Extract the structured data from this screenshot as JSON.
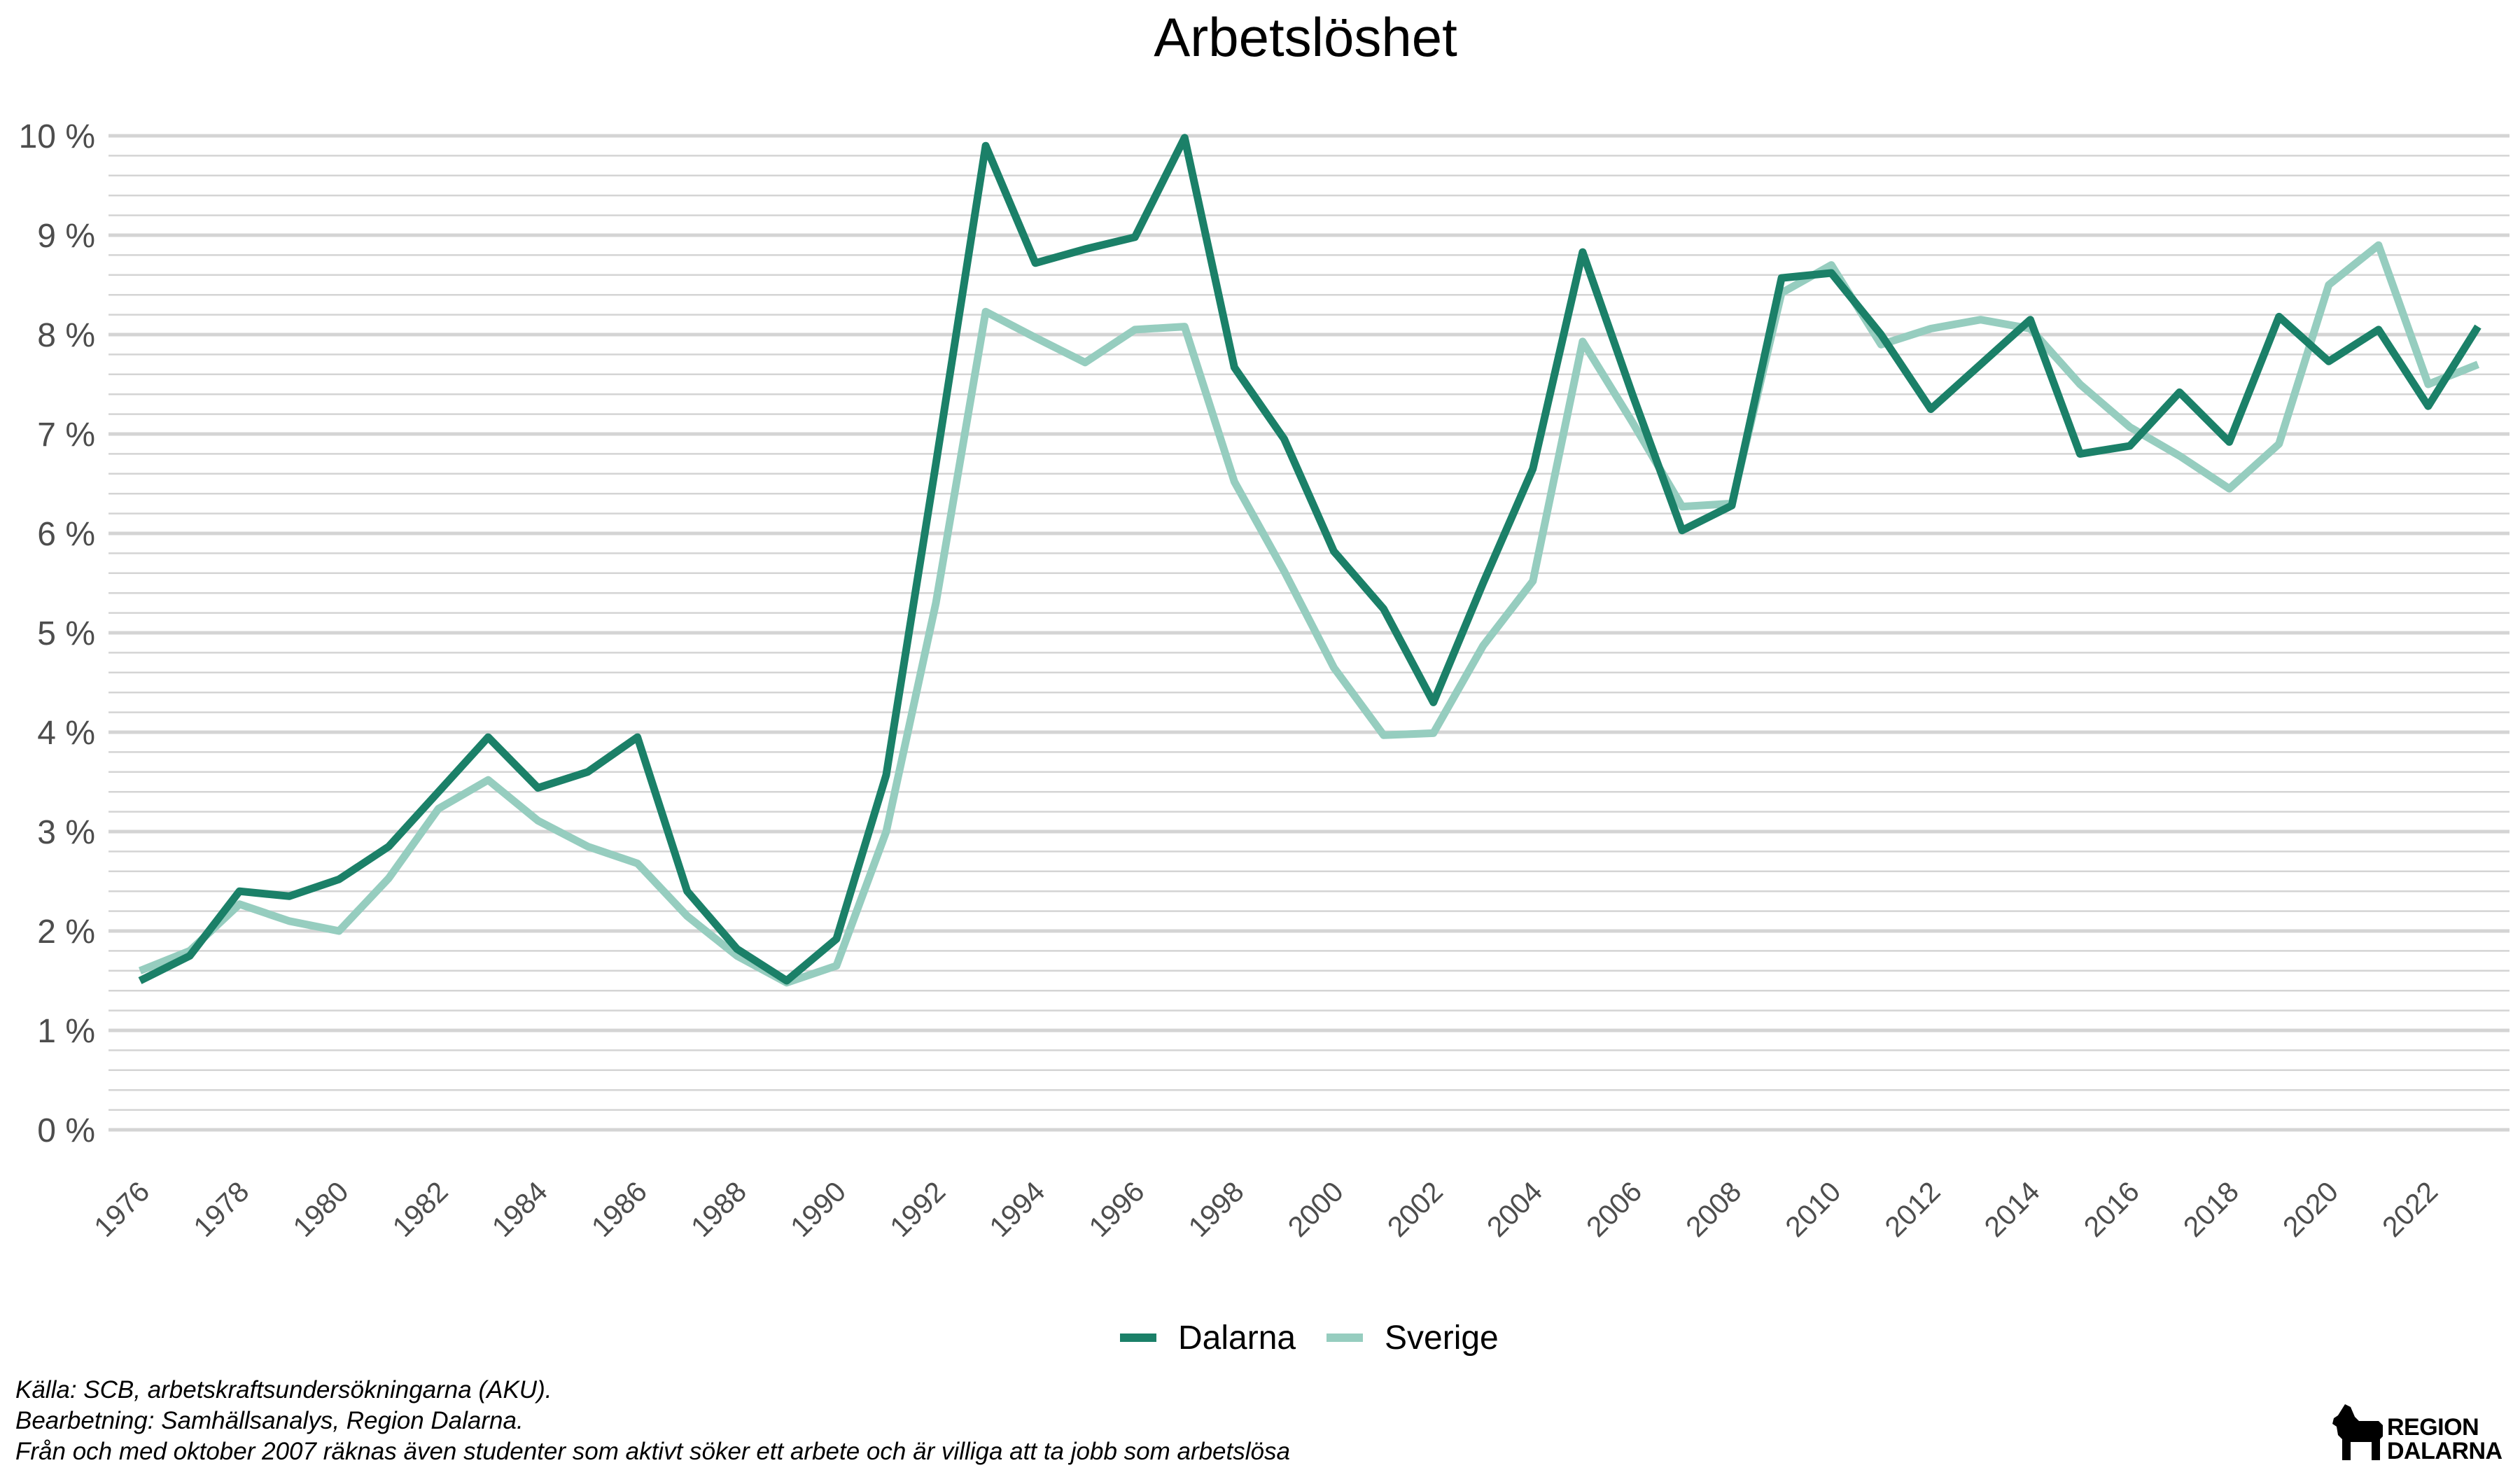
{
  "chart_data": {
    "type": "line",
    "title": "Arbetslöshet",
    "xlabel": "",
    "ylabel": "",
    "x": [
      1976,
      1977,
      1978,
      1979,
      1980,
      1981,
      1982,
      1983,
      1984,
      1985,
      1986,
      1987,
      1988,
      1989,
      1990,
      1991,
      1992,
      1993,
      1994,
      1995,
      1996,
      1997,
      1998,
      1999,
      2000,
      2001,
      2002,
      2003,
      2004,
      2005,
      2006,
      2007,
      2008,
      2009,
      2010,
      2011,
      2012,
      2013,
      2014,
      2015,
      2016,
      2017,
      2018,
      2019,
      2020,
      2021,
      2022,
      2023
    ],
    "x_tick_labels": [
      "1976",
      "1978",
      "1980",
      "1982",
      "1984",
      "1986",
      "1988",
      "1990",
      "1992",
      "1994",
      "1996",
      "1998",
      "2000",
      "2002",
      "2004",
      "2006",
      "2008",
      "2010",
      "2012",
      "2014",
      "2016",
      "2018",
      "2020",
      "2022"
    ],
    "y_tick_labels": [
      "0 %",
      "1 %",
      "2 %",
      "3 %",
      "4 %",
      "5 %",
      "6 %",
      "7 %",
      "8 %",
      "9 %",
      "10 %"
    ],
    "ylim": [
      0,
      10
    ],
    "xlim": [
      1976,
      2023
    ],
    "grid": true,
    "legend_position": "bottom",
    "series": [
      {
        "name": "Dalarna",
        "color": "#1b8068",
        "values": [
          1.5,
          1.75,
          2.4,
          2.35,
          2.52,
          2.85,
          3.4,
          3.95,
          3.44,
          3.6,
          3.95,
          2.4,
          1.82,
          1.5,
          1.92,
          3.57,
          6.7,
          9.9,
          8.72,
          8.86,
          8.98,
          9.98,
          7.67,
          6.95,
          5.82,
          5.24,
          4.3,
          5.5,
          6.65,
          8.83,
          7.4,
          6.03,
          6.28,
          8.57,
          8.62,
          8.0,
          7.25,
          7.7,
          8.15,
          6.8,
          6.88,
          7.42,
          6.92,
          8.18,
          7.73,
          8.05,
          7.28,
          8.08
        ]
      },
      {
        "name": "Sverige",
        "color": "#96cdbf",
        "values": [
          1.6,
          1.8,
          2.27,
          2.1,
          2.0,
          2.53,
          3.23,
          3.52,
          3.11,
          2.85,
          2.68,
          2.15,
          1.75,
          1.48,
          1.65,
          3.0,
          5.3,
          8.23,
          7.97,
          7.72,
          8.05,
          8.08,
          6.52,
          5.62,
          4.65,
          3.97,
          3.99,
          4.87,
          5.52,
          7.93,
          7.12,
          6.27,
          6.3,
          8.42,
          8.7,
          7.9,
          8.06,
          8.15,
          8.06,
          7.5,
          7.07,
          6.78,
          6.45,
          6.9,
          8.5,
          8.9,
          7.5,
          7.7
        ]
      }
    ],
    "colors": {
      "gridline": "#d4d4d4",
      "background": "#ffffff"
    }
  },
  "caption": {
    "line1": "Källa: SCB, arbetskraftsundersökningarna (AKU).",
    "line2": "Bearbetning: Samhällsanalys, Region Dalarna.",
    "line3": "Från och med oktober 2007 räknas även studenter som aktivt söker ett arbete och är villiga att ta jobb som arbetslösa"
  },
  "logo": {
    "line1": "REGION",
    "line2": "DALARNA",
    "icon": "dalecarlian-horse-icon"
  }
}
